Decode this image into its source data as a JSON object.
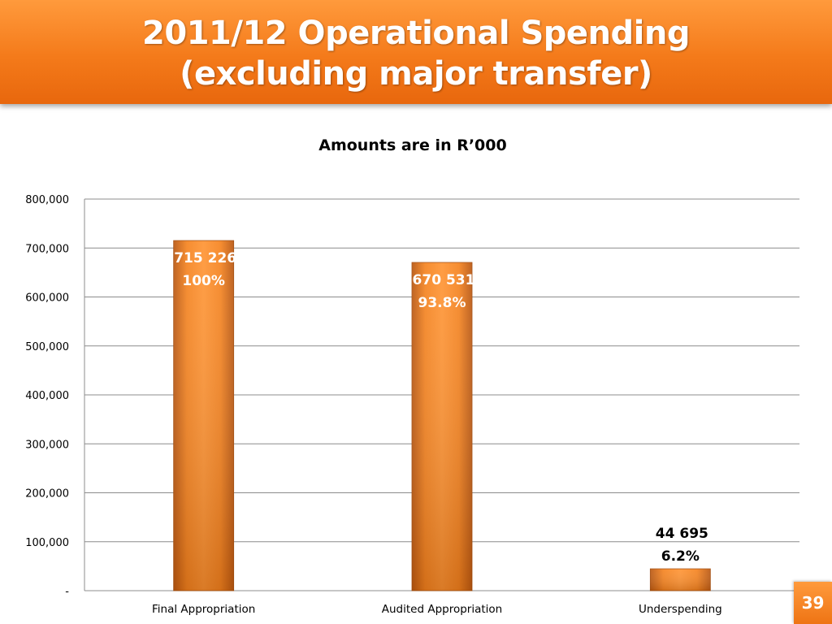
{
  "slide": {
    "title_line1": "2011/12 Operational Spending",
    "title_line2": "(excluding major transfer)",
    "page_number": "39"
  },
  "colors": {
    "accent": "#f47a1a",
    "bar_light": "#ff8f2c",
    "bar_dark": "#c95f12",
    "grid": "#8c8c8c"
  },
  "chart_data": {
    "type": "bar",
    "title": "Amounts are in R’000",
    "categories": [
      "Final Appropriation",
      "Audited Appropriation",
      "Underspending"
    ],
    "values": [
      715226,
      670531,
      44695
    ],
    "data_labels": [
      {
        "amount": "715 226",
        "percent": "100%"
      },
      {
        "amount": "670 531",
        "percent": "93.8%"
      },
      {
        "amount": "44 695",
        "percent": "6.2%"
      }
    ],
    "ylim": [
      0,
      800000
    ],
    "yticks": [
      0,
      100000,
      200000,
      300000,
      400000,
      500000,
      600000,
      700000,
      800000
    ],
    "ytick_labels": [
      "-",
      "100,000",
      "200,000",
      "300,000",
      "400,000",
      "500,000",
      "600,000",
      "700,000",
      "800,000"
    ],
    "grid": true,
    "legend": "none"
  }
}
